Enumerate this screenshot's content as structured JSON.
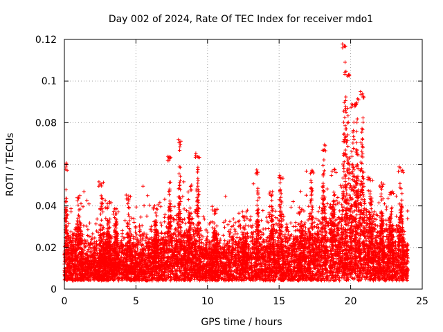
{
  "chart_data": {
    "type": "scatter",
    "title": "Day 002 of 2024, Rate Of TEC Index for receiver mdo1",
    "xlabel": "GPS time / hours",
    "ylabel": "ROTI / TECUs",
    "xlim": [
      0,
      25
    ],
    "ylim": [
      0,
      0.12
    ],
    "x_ticks": [
      0,
      5,
      10,
      15,
      20,
      25
    ],
    "x_tick_labels": [
      "0",
      "5",
      "10",
      "15",
      "20",
      "25"
    ],
    "y_ticks": [
      0,
      0.02,
      0.04,
      0.06,
      0.08,
      0.1,
      0.12
    ],
    "y_tick_labels": [
      "0",
      "0.02",
      "0.04",
      "0.06",
      "0.08",
      "0.1",
      "0.12"
    ],
    "grid": true,
    "marker": "+",
    "series": [
      {
        "name": "ROTI",
        "color": "#ff0000",
        "x_range": [
          0,
          24
        ],
        "points_per_hour": 320,
        "baseline_envelope": [
          {
            "x": 0,
            "median": 0.012,
            "spread": 0.018
          },
          {
            "x": 1,
            "median": 0.012,
            "spread": 0.016
          },
          {
            "x": 2,
            "median": 0.011,
            "spread": 0.014
          },
          {
            "x": 3,
            "median": 0.01,
            "spread": 0.012
          },
          {
            "x": 4,
            "median": 0.011,
            "spread": 0.013
          },
          {
            "x": 5,
            "median": 0.012,
            "spread": 0.015
          },
          {
            "x": 6,
            "median": 0.013,
            "spread": 0.016
          },
          {
            "x": 7,
            "median": 0.013,
            "spread": 0.017
          },
          {
            "x": 8,
            "median": 0.014,
            "spread": 0.019
          },
          {
            "x": 9,
            "median": 0.014,
            "spread": 0.019
          },
          {
            "x": 10,
            "median": 0.011,
            "spread": 0.014
          },
          {
            "x": 11,
            "median": 0.012,
            "spread": 0.016
          },
          {
            "x": 12,
            "median": 0.013,
            "spread": 0.017
          },
          {
            "x": 13,
            "median": 0.013,
            "spread": 0.017
          },
          {
            "x": 14,
            "median": 0.013,
            "spread": 0.017
          },
          {
            "x": 15,
            "median": 0.013,
            "spread": 0.017
          },
          {
            "x": 16,
            "median": 0.013,
            "spread": 0.017
          },
          {
            "x": 17,
            "median": 0.013,
            "spread": 0.018
          },
          {
            "x": 18,
            "median": 0.015,
            "spread": 0.022
          },
          {
            "x": 19,
            "median": 0.017,
            "spread": 0.026
          },
          {
            "x": 20,
            "median": 0.018,
            "spread": 0.028
          },
          {
            "x": 21,
            "median": 0.016,
            "spread": 0.024
          },
          {
            "x": 22,
            "median": 0.014,
            "spread": 0.02
          },
          {
            "x": 23,
            "median": 0.013,
            "spread": 0.018
          },
          {
            "x": 24,
            "median": 0.012,
            "spread": 0.016
          }
        ],
        "peak_tracks": [
          {
            "x_start": 0.05,
            "x_end": 0.2,
            "peak": 0.061
          },
          {
            "x_start": 0.7,
            "x_end": 1.3,
            "peak": 0.045
          },
          {
            "x_start": 2.4,
            "x_end": 2.8,
            "peak": 0.053
          },
          {
            "x_start": 2.8,
            "x_end": 3.3,
            "peak": 0.043
          },
          {
            "x_start": 3.4,
            "x_end": 3.8,
            "peak": 0.04
          },
          {
            "x_start": 4.3,
            "x_end": 4.7,
            "peak": 0.047
          },
          {
            "x_start": 6.2,
            "x_end": 6.6,
            "peak": 0.042
          },
          {
            "x_start": 7.2,
            "x_end": 7.5,
            "peak": 0.064
          },
          {
            "x_start": 7.9,
            "x_end": 8.2,
            "peak": 0.072
          },
          {
            "x_start": 8.6,
            "x_end": 8.9,
            "peak": 0.05
          },
          {
            "x_start": 9.1,
            "x_end": 9.5,
            "peak": 0.066
          },
          {
            "x_start": 10.3,
            "x_end": 10.7,
            "peak": 0.04
          },
          {
            "x_start": 12.4,
            "x_end": 12.8,
            "peak": 0.038
          },
          {
            "x_start": 13.4,
            "x_end": 13.6,
            "peak": 0.059
          },
          {
            "x_start": 14.3,
            "x_end": 14.7,
            "peak": 0.048
          },
          {
            "x_start": 14.9,
            "x_end": 15.3,
            "peak": 0.055
          },
          {
            "x_start": 16.4,
            "x_end": 16.8,
            "peak": 0.04
          },
          {
            "x_start": 17.1,
            "x_end": 17.4,
            "peak": 0.059
          },
          {
            "x_start": 17.9,
            "x_end": 18.3,
            "peak": 0.07
          },
          {
            "x_start": 18.6,
            "x_end": 19.0,
            "peak": 0.058
          },
          {
            "x_start": 19.4,
            "x_end": 19.8,
            "peak": 0.12
          },
          {
            "x_start": 19.6,
            "x_end": 20.0,
            "peak": 0.105
          },
          {
            "x_start": 20.0,
            "x_end": 20.4,
            "peak": 0.09
          },
          {
            "x_start": 20.3,
            "x_end": 20.6,
            "peak": 0.092
          },
          {
            "x_start": 20.6,
            "x_end": 21.0,
            "peak": 0.096
          },
          {
            "x_start": 21.2,
            "x_end": 21.6,
            "peak": 0.055
          },
          {
            "x_start": 22.0,
            "x_end": 22.3,
            "peak": 0.052
          },
          {
            "x_start": 22.6,
            "x_end": 23.0,
            "peak": 0.048
          },
          {
            "x_start": 23.3,
            "x_end": 23.7,
            "peak": 0.059
          }
        ]
      }
    ]
  }
}
